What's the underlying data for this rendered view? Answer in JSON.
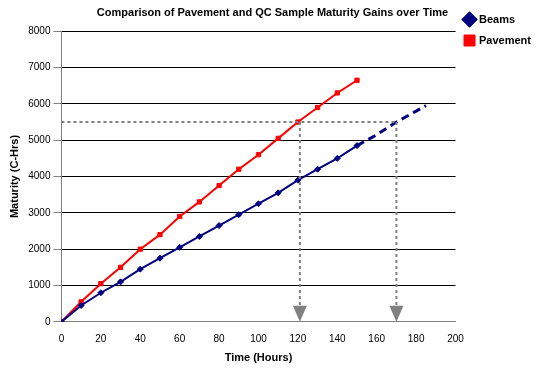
{
  "chart_data": {
    "type": "line",
    "title": "Comparison of Pavement and QC Sample Maturity Gains over Time",
    "x_label": "Time (Hours)",
    "y_label": "Maturity (C-Hrs)",
    "x": [
      0,
      10,
      20,
      30,
      40,
      50,
      60,
      70,
      80,
      90,
      100,
      110,
      120,
      130,
      140,
      150
    ],
    "series": [
      {
        "name": "Beams",
        "color": "#000080",
        "marker": "diamond",
        "line_style": "solid",
        "values": [
          0,
          450,
          800,
          1100,
          1450,
          1750,
          2050,
          2350,
          2650,
          2950,
          3250,
          3550,
          3900,
          4200,
          4500,
          4850
        ],
        "projection": {
          "x": [
            150,
            160,
            170,
            180,
            185
          ],
          "values": [
            4850,
            5150,
            5500,
            5800,
            5950
          ],
          "line_style": "dashed"
        }
      },
      {
        "name": "Pavement",
        "color": "#ff0000",
        "marker": "square",
        "line_style": "solid",
        "values": [
          0,
          550,
          1050,
          1500,
          2000,
          2400,
          2900,
          3300,
          3750,
          4200,
          4600,
          5050,
          5500,
          5900,
          6300,
          6650
        ]
      }
    ],
    "reference": {
      "y": 5500,
      "x": [
        121,
        170
      ]
    },
    "xlim": [
      0,
      200
    ],
    "xticks": [
      0,
      20,
      40,
      60,
      80,
      100,
      120,
      140,
      160,
      180,
      200
    ],
    "ylim": [
      0,
      8000
    ],
    "yticks": [
      0,
      1000,
      2000,
      3000,
      4000,
      5000,
      6000,
      7000,
      8000
    ],
    "grid": "y",
    "legend": "right"
  }
}
